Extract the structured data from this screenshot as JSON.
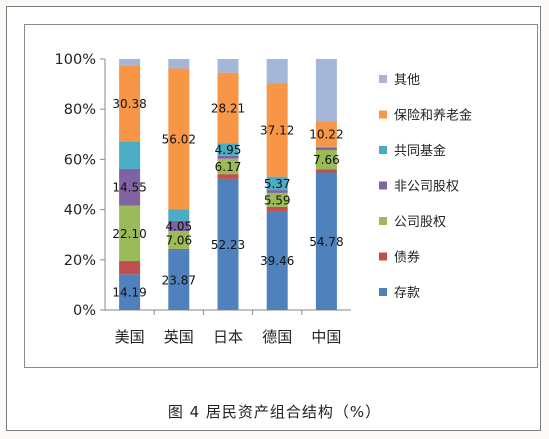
{
  "caption": "图 4  居民资产组合结构（%）",
  "chart_data": {
    "type": "bar",
    "stacked": true,
    "normalized": true,
    "categories": [
      "美国",
      "英国",
      "日本",
      "德国",
      "中国"
    ],
    "y_ticks": [
      "0%",
      "20%",
      "40%",
      "60%",
      "80%",
      "100%"
    ],
    "ylim": [
      0,
      100
    ],
    "legend_position": "right",
    "grid": false,
    "series": [
      {
        "name": "存款",
        "color": "#4f81bd",
        "values": [
          14.19,
          23.87,
          52.23,
          39.46,
          54.78
        ]
      },
      {
        "name": "债券",
        "color": "#c0504d",
        "values": [
          5.3,
          0.5,
          1.9,
          1.6,
          1.3
        ]
      },
      {
        "name": "公司股权",
        "color": "#9bbb59",
        "values": [
          22.1,
          7.06,
          6.17,
          5.59,
          7.66
        ]
      },
      {
        "name": "非公司股权",
        "color": "#8064a2",
        "values": [
          14.55,
          4.05,
          1.1,
          1.1,
          0.8
        ]
      },
      {
        "name": "共同基金",
        "color": "#4bacc6",
        "values": [
          10.9,
          4.7,
          4.95,
          5.37,
          0.5
        ]
      },
      {
        "name": "保险和养老金",
        "color": "#f79646",
        "values": [
          30.38,
          56.02,
          28.21,
          37.12,
          10.22
        ]
      },
      {
        "name": "其他",
        "color": "#a5b7d9",
        "values": [
          2.48,
          3.8,
          5.44,
          9.76,
          24.74
        ]
      }
    ],
    "data_labels": [
      {
        "category": "美国",
        "series": "存款",
        "text": "14.19"
      },
      {
        "category": "美国",
        "series": "公司股权",
        "text": "22.10"
      },
      {
        "category": "美国",
        "series": "非公司股权",
        "text": "14.55"
      },
      {
        "category": "美国",
        "series": "保险和养老金",
        "text": "30.38"
      },
      {
        "category": "英国",
        "series": "存款",
        "text": "23.87"
      },
      {
        "category": "英国",
        "series": "公司股权",
        "text": "7.06"
      },
      {
        "category": "英国",
        "series": "非公司股权",
        "text": "4.05"
      },
      {
        "category": "英国",
        "series": "保险和养老金",
        "text": "56.02"
      },
      {
        "category": "日本",
        "series": "存款",
        "text": "52.23"
      },
      {
        "category": "日本",
        "series": "公司股权",
        "text": "6.17"
      },
      {
        "category": "日本",
        "series": "共同基金",
        "text": "4.95"
      },
      {
        "category": "日本",
        "series": "保险和养老金",
        "text": "28.21"
      },
      {
        "category": "德国",
        "series": "存款",
        "text": "39.46"
      },
      {
        "category": "德国",
        "series": "公司股权",
        "text": "5.59"
      },
      {
        "category": "德国",
        "series": "共同基金",
        "text": "5.37"
      },
      {
        "category": "德国",
        "series": "保险和养老金",
        "text": "37.12"
      },
      {
        "category": "中国",
        "series": "存款",
        "text": "54.78"
      },
      {
        "category": "中国",
        "series": "公司股权",
        "text": "7.66"
      },
      {
        "category": "中国",
        "series": "保险和养老金",
        "text": "10.22"
      }
    ],
    "legend_order": [
      "其他",
      "保险和养老金",
      "共同基金",
      "非公司股权",
      "公司股权",
      "债券",
      "存款"
    ]
  }
}
